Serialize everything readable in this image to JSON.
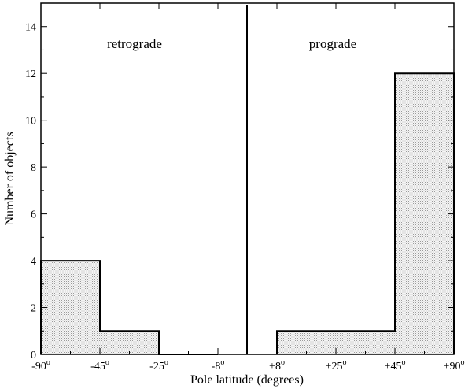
{
  "chart_data": {
    "type": "bar",
    "subtype": "histogram",
    "xlabel": "Pole latitude (degrees)",
    "ylabel": "Number of objects",
    "ylim": [
      0,
      15
    ],
    "y_ticks": [
      0,
      2,
      4,
      6,
      8,
      10,
      12,
      14
    ],
    "x_ticks": [
      {
        "label": "-90",
        "sup": "o"
      },
      {
        "label": "-45",
        "sup": "o"
      },
      {
        "label": "-25",
        "sup": "o"
      },
      {
        "label": "-8",
        "sup": "o"
      },
      {
        "label": "+8",
        "sup": "o"
      },
      {
        "label": "+25",
        "sup": "o"
      },
      {
        "label": "+45",
        "sup": "o"
      },
      {
        "label": "+90",
        "sup": "o"
      }
    ],
    "bins": [
      {
        "from": "-90",
        "to": "-45",
        "value": 4
      },
      {
        "from": "-45",
        "to": "-25",
        "value": 1
      },
      {
        "from": "-25",
        "to": "-8",
        "value": 0
      },
      {
        "from": "+8",
        "to": "+25",
        "value": 1
      },
      {
        "from": "+25",
        "to": "+45",
        "value": 1
      },
      {
        "from": "+45",
        "to": "+90",
        "value": 12
      }
    ],
    "annotations": {
      "left": "retrograde",
      "right": "prograde"
    },
    "grid": false
  }
}
